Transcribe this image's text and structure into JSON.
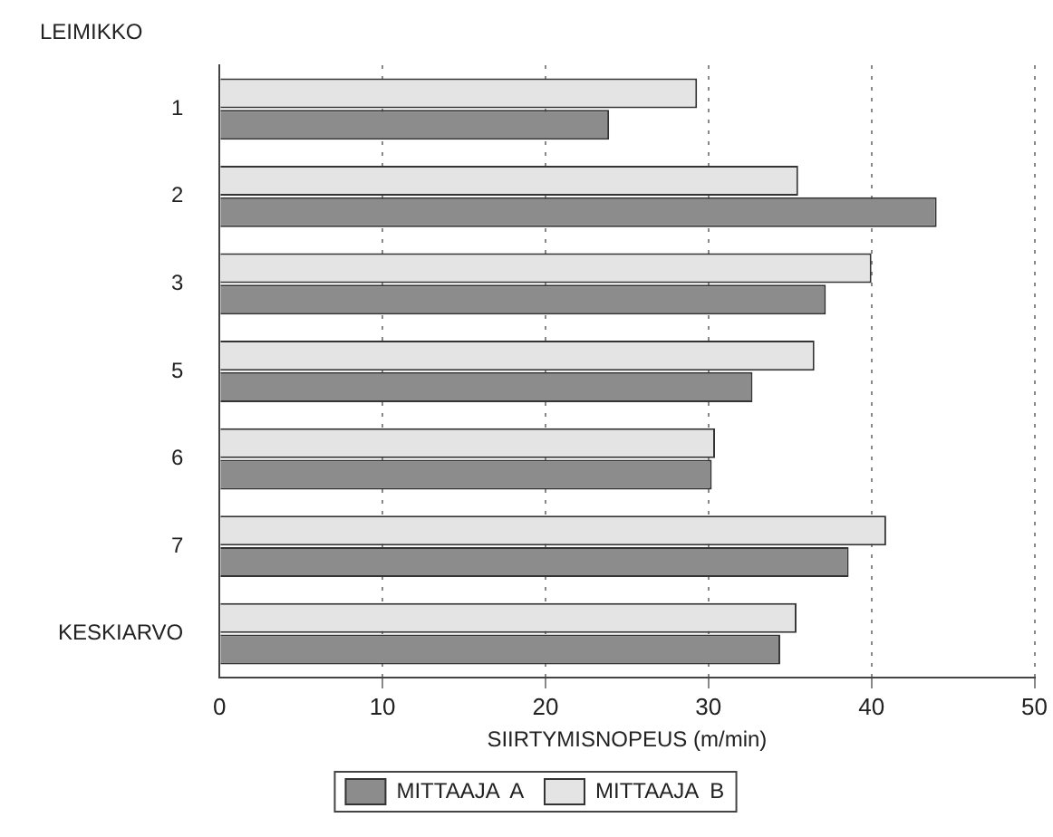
{
  "chart_data": {
    "type": "bar",
    "orientation": "horizontal",
    "ylabel": "LEIMIKKO",
    "xlabel": "SIIRTYMISNOPEUS (m/min)",
    "categories": [
      "1",
      "2",
      "3",
      "5",
      "6",
      "7",
      "KESKIARVO"
    ],
    "series": [
      {
        "name": "MITTAAJA  A",
        "color": "#8c8c8c",
        "values": [
          23.9,
          44.0,
          37.2,
          32.7,
          30.2,
          38.6,
          34.4
        ]
      },
      {
        "name": "MITTAAJA  B",
        "color": "#e4e4e4",
        "values": [
          29.3,
          35.5,
          40.0,
          36.5,
          30.4,
          40.9,
          35.4
        ]
      }
    ],
    "xlim": [
      0,
      50
    ],
    "xticks": [
      0,
      10,
      20,
      30,
      40,
      50
    ],
    "grid": "x",
    "legend": "bottom"
  }
}
